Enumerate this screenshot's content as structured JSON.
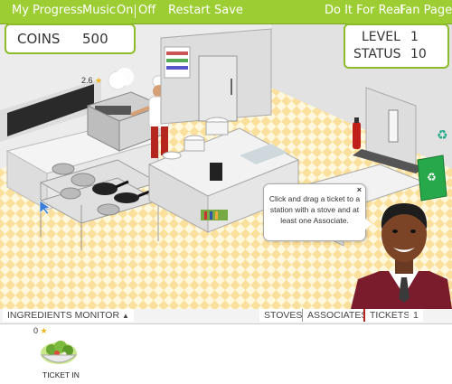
{
  "topbar": {
    "my_progress": "My Progress",
    "music": "Music",
    "music_on": "On",
    "music_off": "Off",
    "restart": "Restart",
    "save": "Save",
    "do_it_for_real": "Do It For Real",
    "fan_page": "Fan Page"
  },
  "hud": {
    "coins_label": "COINS",
    "coins_value": "500",
    "level_label": "LEVEL",
    "level_value": "1",
    "status_label": "STATUS",
    "status_value": "10"
  },
  "chef": {
    "rating": "2.6"
  },
  "tutorial": {
    "close": "×",
    "message": "Click and drag a ticket to a station with a stove and at least one Associate."
  },
  "bottom": {
    "ingredients_monitor": "INGREDIENTS MONITOR",
    "stoves": "STOVES",
    "associates": "ASSOCIATES",
    "tickets": "TICKETS",
    "tickets_count": "1"
  },
  "ticket": {
    "rating": "0",
    "label": "TICKET IN"
  },
  "colors": {
    "accent": "#9ccd33",
    "floor_tile": "#fbe3a4"
  }
}
